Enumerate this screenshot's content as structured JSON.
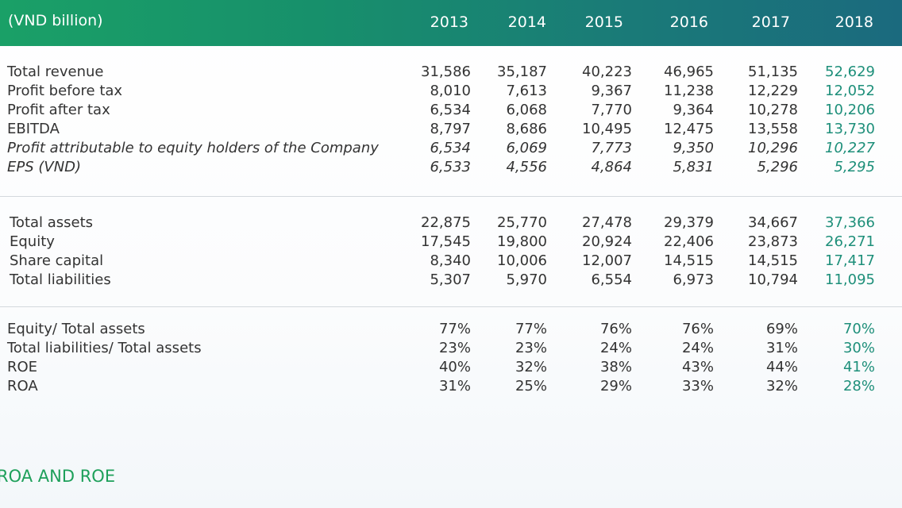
{
  "header": {
    "unit": "(VND billion)",
    "years": [
      "2013",
      "2014",
      "2015",
      "2016",
      "2017",
      "2018"
    ]
  },
  "income": [
    {
      "label": "Total revenue",
      "italic": false,
      "values": [
        "31,586",
        "35,187",
        "40,223",
        "46,965",
        "51,135",
        "52,629"
      ]
    },
    {
      "label": "Profit before tax",
      "italic": false,
      "values": [
        "8,010",
        "7,613",
        "9,367",
        "11,238",
        "12,229",
        "12,052"
      ]
    },
    {
      "label": "Profit after tax",
      "italic": false,
      "values": [
        "6,534",
        "6,068",
        "7,770",
        "9,364",
        "10,278",
        "10,206"
      ]
    },
    {
      "label": "EBITDA",
      "italic": false,
      "values": [
        "8,797",
        "8,686",
        "10,495",
        "12,475",
        "13,558",
        "13,730"
      ]
    },
    {
      "label": "Profit attributable to equity holders of the Company",
      "italic": true,
      "values": [
        "6,534",
        "6,069",
        "7,773",
        "9,350",
        "10,296",
        "10,227"
      ]
    },
    {
      "label": "EPS (VND)",
      "italic": true,
      "values": [
        "6,533",
        "4,556",
        "4,864",
        "5,831",
        "5,296",
        "5,295"
      ]
    }
  ],
  "balance": [
    {
      "label": "Total assets",
      "values": [
        "22,875",
        "25,770",
        "27,478",
        "29,379",
        "34,667",
        "37,366"
      ]
    },
    {
      "label": "Equity",
      "values": [
        "17,545",
        "19,800",
        "20,924",
        "22,406",
        "23,873",
        "26,271"
      ]
    },
    {
      "label": "Share capital",
      "values": [
        "8,340",
        "10,006",
        "12,007",
        "14,515",
        "14,515",
        "17,417"
      ]
    },
    {
      "label": "Total liabilities",
      "values": [
        "5,307",
        "5,970",
        "6,554",
        "6,973",
        "10,794",
        "11,095"
      ]
    }
  ],
  "ratios": [
    {
      "label": "Equity/ Total assets",
      "values": [
        "77%",
        "77%",
        "76%",
        "76%",
        "69%",
        "70%"
      ]
    },
    {
      "label": "Total liabilities/ Total assets",
      "values": [
        "23%",
        "23%",
        "24%",
        "24%",
        "31%",
        "30%"
      ]
    },
    {
      "label": "ROE",
      "values": [
        "40%",
        "32%",
        "38%",
        "43%",
        "44%",
        "41%"
      ]
    },
    {
      "label": "ROA",
      "values": [
        "31%",
        "25%",
        "29%",
        "33%",
        "32%",
        "28%"
      ]
    }
  ],
  "next_section_title": "ROA AND ROE",
  "colors": {
    "header_start": "#1aa067",
    "header_end": "#1b6a7e",
    "highlight": "#1e8f7a",
    "section_title": "#1ea05a"
  }
}
